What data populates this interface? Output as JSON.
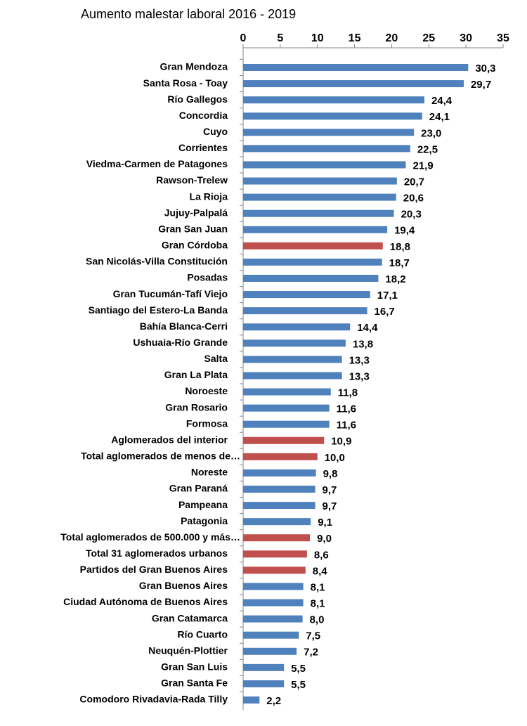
{
  "chart_data": {
    "type": "bar",
    "orientation": "horizontal",
    "title": "Aumento malestar laboral 2016 - 2019",
    "categories": [
      "Gran Mendoza",
      "Santa Rosa - Toay",
      "Río Gallegos",
      "Concordia",
      "Cuyo",
      "Corrientes",
      "Viedma-Carmen de Patagones",
      "Rawson-Trelew",
      "La Rioja",
      "Jujuy-Palpalá",
      "Gran San Juan",
      "Gran Córdoba",
      "San Nicolás-Villa Constitución",
      "Posadas",
      "Gran Tucumán-Tafí Viejo",
      "Santiago del Estero-La Banda",
      "Bahía Blanca-Cerri",
      "Ushuaia-Río Grande",
      "Salta",
      "Gran La Plata",
      "Noroeste",
      "Gran Rosario",
      "Formosa",
      "Aglomerados del interior",
      "Total aglomerados de menos de…",
      "Noreste",
      "Gran Paraná",
      "Pampeana",
      "Patagonia",
      "Total aglomerados de 500.000 y más…",
      "Total 31 aglomerados urbanos",
      "Partidos del Gran Buenos Aires",
      "Gran Buenos Aires",
      "Ciudad Autónoma de Buenos Aires",
      "Gran Catamarca",
      "Río Cuarto",
      "Neuquén-Plottier",
      "Gran San Luis",
      "Gran Santa Fe",
      "Comodoro Rivadavia-Rada Tilly"
    ],
    "values": [
      30.3,
      29.7,
      24.4,
      24.1,
      23.0,
      22.5,
      21.9,
      20.7,
      20.6,
      20.3,
      19.4,
      18.8,
      18.7,
      18.2,
      17.1,
      16.7,
      14.4,
      13.8,
      13.3,
      13.3,
      11.8,
      11.6,
      11.6,
      10.9,
      10.0,
      9.8,
      9.7,
      9.7,
      9.1,
      9.0,
      8.6,
      8.4,
      8.1,
      8.1,
      8.0,
      7.5,
      7.2,
      5.5,
      5.5,
      2.2
    ],
    "value_labels": [
      "30,3",
      "29,7",
      "24,4",
      "24,1",
      "23,0",
      "22,5",
      "21,9",
      "20,7",
      "20,6",
      "20,3",
      "19,4",
      "18,8",
      "18,7",
      "18,2",
      "17,1",
      "16,7",
      "14,4",
      "13,8",
      "13,3",
      "13,3",
      "11,8",
      "11,6",
      "11,6",
      "10,9",
      "10,0",
      "9,8",
      "9,7",
      "9,7",
      "9,1",
      "9,0",
      "8,6",
      "8,4",
      "8,1",
      "8,1",
      "8,0",
      "7,5",
      "7,2",
      "5,5",
      "5,5",
      "2,2"
    ],
    "colors": [
      "#4f81bd",
      "#4f81bd",
      "#4f81bd",
      "#4f81bd",
      "#4f81bd",
      "#4f81bd",
      "#4f81bd",
      "#4f81bd",
      "#4f81bd",
      "#4f81bd",
      "#4f81bd",
      "#c0504d",
      "#4f81bd",
      "#4f81bd",
      "#4f81bd",
      "#4f81bd",
      "#4f81bd",
      "#4f81bd",
      "#4f81bd",
      "#4f81bd",
      "#4f81bd",
      "#4f81bd",
      "#4f81bd",
      "#c0504d",
      "#c0504d",
      "#4f81bd",
      "#4f81bd",
      "#4f81bd",
      "#4f81bd",
      "#c0504d",
      "#c0504d",
      "#c0504d",
      "#4f81bd",
      "#4f81bd",
      "#4f81bd",
      "#4f81bd",
      "#4f81bd",
      "#4f81bd",
      "#4f81bd",
      "#4f81bd"
    ],
    "xlim": [
      0,
      35
    ],
    "xticks": [
      0,
      5,
      10,
      15,
      20,
      25,
      30,
      35
    ],
    "grid": false
  }
}
